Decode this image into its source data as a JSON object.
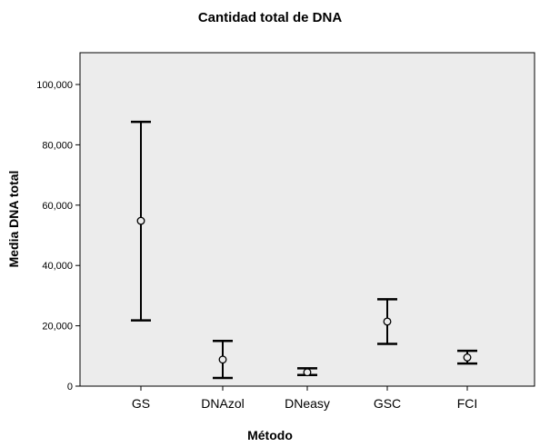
{
  "chart_data": {
    "type": "errorbar",
    "title": "Cantidad total de DNA",
    "xlabel": "Método",
    "ylabel": "Media DNA total",
    "ylim": [
      0,
      110000
    ],
    "yticks": [
      0,
      20000,
      40000,
      60000,
      80000,
      100000
    ],
    "ytick_labels": [
      "0",
      "20,000",
      "40,000",
      "60,000",
      "80,000",
      "100,000"
    ],
    "grid": false,
    "categories": [
      "GS",
      "DNAzol",
      "DNeasy",
      "GSC",
      "FCI"
    ],
    "means": [
      54800,
      8800,
      4600,
      21400,
      9500
    ],
    "lower": [
      21800,
      2700,
      3700,
      14000,
      7500
    ],
    "upper": [
      87600,
      15000,
      5900,
      28800,
      11700
    ],
    "colors": {
      "plot_background": "#ececec",
      "marks": "#000000"
    }
  }
}
